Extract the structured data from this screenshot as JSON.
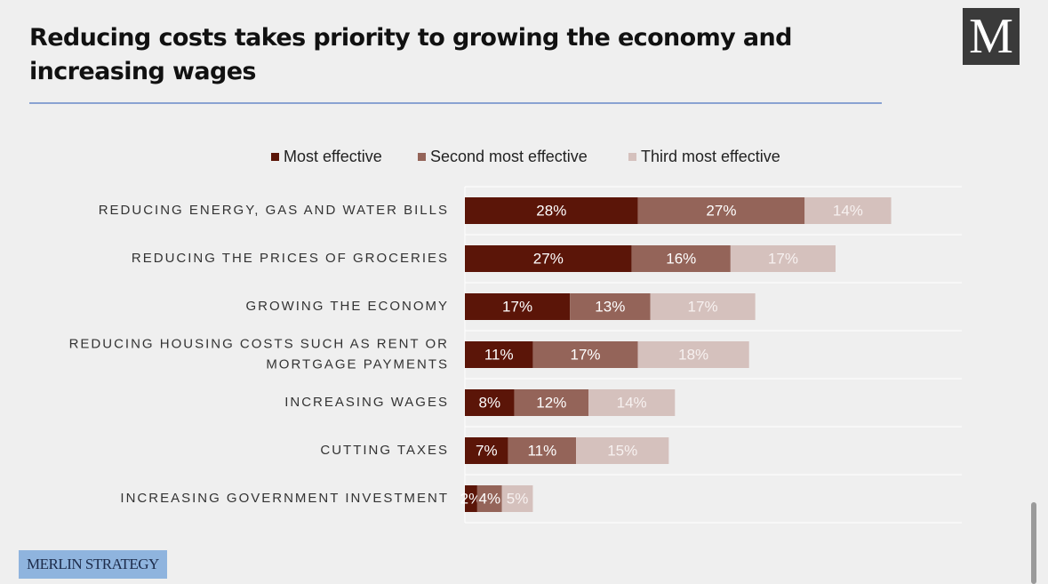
{
  "title": "Reducing costs takes priority to growing the economy and increasing wages",
  "logo": {
    "letter": "M"
  },
  "brand": "MERLIN STRATEGY",
  "colors": {
    "most": "#5b1508",
    "second": "#946459",
    "third": "#d5c1bd",
    "background": "#efefef"
  },
  "chart_data": {
    "type": "bar",
    "orientation": "horizontal",
    "stacked": true,
    "title": "Reducing costs takes priority to growing the economy and increasing wages",
    "categories": [
      "REDUCING ENERGY, GAS AND WATER BILLS",
      "REDUCING THE PRICES OF GROCERIES",
      "GROWING THE ECONOMY",
      "REDUCING HOUSING COSTS SUCH AS RENT OR MORTGAGE PAYMENTS",
      "INCREASING WAGES",
      "CUTTING TAXES",
      "INCREASING GOVERNMENT INVESTMENT"
    ],
    "category_lines": [
      [
        "REDUCING ENERGY, GAS AND WATER BILLS"
      ],
      [
        "REDUCING THE PRICES OF GROCERIES"
      ],
      [
        "GROWING THE ECONOMY"
      ],
      [
        "REDUCING HOUSING COSTS SUCH AS RENT OR",
        "MORTGAGE PAYMENTS"
      ],
      [
        "INCREASING WAGES"
      ],
      [
        "CUTTING TAXES"
      ],
      [
        "INCREASING GOVERNMENT INVESTMENT"
      ]
    ],
    "series": [
      {
        "name": "Most effective",
        "values": [
          28,
          27,
          17,
          11,
          8,
          7,
          2
        ]
      },
      {
        "name": "Second most effective",
        "values": [
          27,
          16,
          13,
          17,
          12,
          11,
          4
        ]
      },
      {
        "name": "Third most effective",
        "values": [
          14,
          17,
          17,
          18,
          14,
          15,
          5
        ]
      }
    ],
    "value_suffix": "%",
    "legend_position": "top",
    "xlim": [
      0,
      80
    ],
    "grid": false
  }
}
